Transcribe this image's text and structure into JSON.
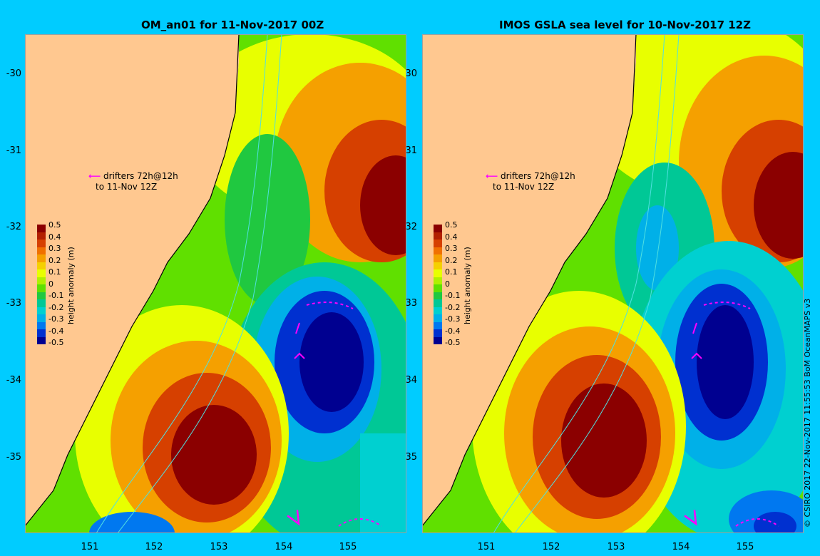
{
  "left_panel": {
    "title": "OM_an01 for 11-Nov-2017 00Z"
  },
  "right_panel": {
    "title": "IMOS GSLA sea level  for 10-Nov-2017 12Z"
  },
  "y_labels": [
    "-30",
    "-31",
    "-32",
    "-33",
    "-34",
    "-35"
  ],
  "x_labels": [
    "151",
    "152",
    "153",
    "154",
    "155"
  ],
  "drifter_note": {
    "line1": "drifters 72h@12h",
    "line2": "to 11-Nov 12Z"
  },
  "colorbar": {
    "unit": "height anomaly (m)",
    "ticks": [
      "0.5",
      "0.4",
      "0.3",
      "0.2",
      "0.1",
      "0",
      "-0.1",
      "-0.2",
      "-0.3",
      "-0.4",
      "-0.5"
    ],
    "colors": [
      "#8b0000",
      "#b22000",
      "#d64000",
      "#f07000",
      "#f5a000",
      "#f5d000",
      "#e8ff00",
      "#b0f000",
      "#60e000",
      "#20c840",
      "#00c896",
      "#00d0d0",
      "#00b0e8",
      "#0078f0",
      "#0030d0",
      "#000090"
    ]
  },
  "credit": "© CSIRO 2017   22-Nov-2017 11:55:53 BoM OceanMAPS v3",
  "colors": {
    "background": "#00ccff",
    "land": "#ffc890",
    "drifter": "#ff00ff",
    "contour": "#50e0e0"
  }
}
